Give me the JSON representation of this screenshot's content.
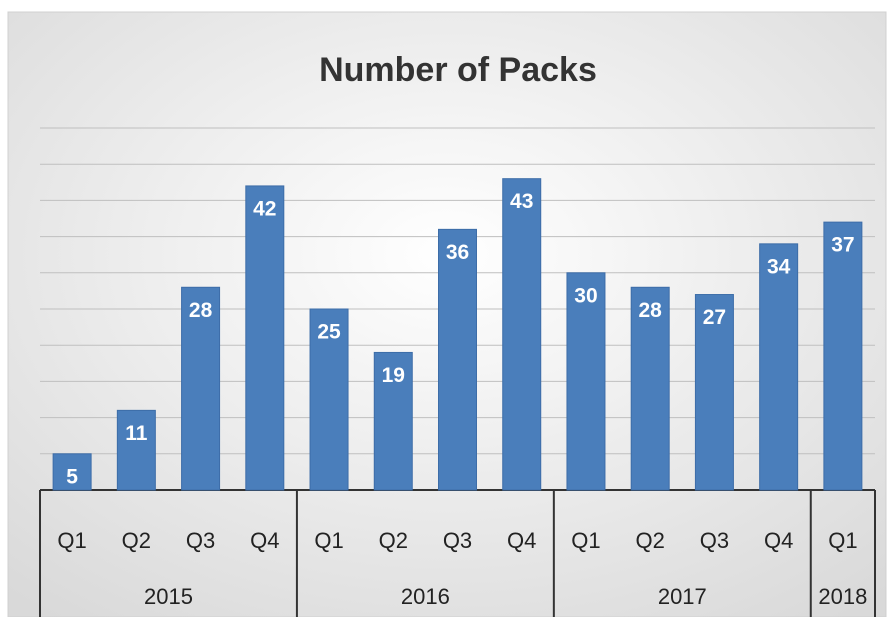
{
  "chart_data": {
    "type": "bar",
    "title": "Number of Packs",
    "categories": [
      "Q1",
      "Q2",
      "Q3",
      "Q4",
      "Q1",
      "Q2",
      "Q3",
      "Q4",
      "Q1",
      "Q2",
      "Q3",
      "Q4",
      "Q1"
    ],
    "groups": [
      "2015",
      null,
      null,
      null,
      "2016",
      null,
      null,
      null,
      "2017",
      null,
      null,
      null,
      "2018"
    ],
    "values": [
      5,
      11,
      28,
      42,
      25,
      19,
      36,
      43,
      30,
      28,
      27,
      34,
      37
    ],
    "color": "#4a7ebb",
    "ylim": [
      0,
      50
    ],
    "yticks": [
      0,
      5,
      10,
      15,
      20,
      25,
      30,
      35,
      40,
      45,
      50
    ],
    "grid": true
  }
}
